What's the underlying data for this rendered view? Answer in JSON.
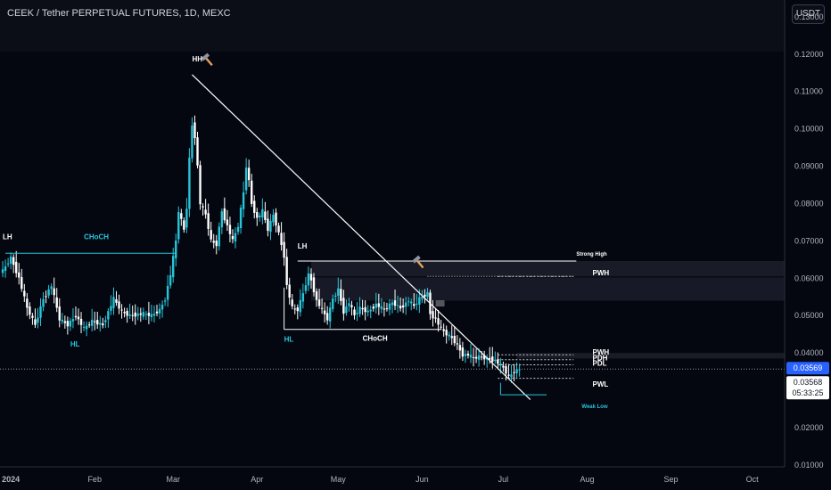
{
  "header": {
    "title": "CEEK / Tether PERPETUAL FUTURES, 1D, MEXC",
    "currency_button": "USDT"
  },
  "colors": {
    "background": "#050710",
    "candle_up": "#26c6da",
    "candle_down": "#ffffff",
    "structure": "#26c6da",
    "trendline": "#ffffff",
    "price_tag": "#2962ff"
  },
  "chart_data": {
    "type": "candlestick",
    "symbol": "CEEK / Tether PERPETUAL FUTURES",
    "timeframe": "1D",
    "exchange": "MEXC",
    "yaxis": {
      "ticks": [
        "0.13000",
        "0.12000",
        "0.11000",
        "0.10000",
        "0.09000",
        "0.08000",
        "0.07000",
        "0.06000",
        "0.05000",
        "0.04000",
        "0.03000",
        "0.02000",
        "0.01000"
      ],
      "tick_values": [
        0.13,
        0.12,
        0.11,
        0.1,
        0.09,
        0.08,
        0.07,
        0.06,
        0.05,
        0.04,
        0.03,
        0.02,
        0.01
      ],
      "range": [
        0.0095,
        0.1345
      ],
      "scale": "linear"
    },
    "xaxis": {
      "ticks": [
        "2024",
        "Feb",
        "Mar",
        "Apr",
        "May",
        "Jun",
        "Jul",
        "Aug",
        "Sep",
        "Oct"
      ],
      "tick_days": [
        6,
        37,
        66,
        97,
        127,
        158,
        188,
        219,
        250,
        280
      ],
      "range_days": [
        2,
        292
      ]
    },
    "close_anchors": [
      [
        3,
        0.062
      ],
      [
        6,
        0.0655
      ],
      [
        9,
        0.06
      ],
      [
        12,
        0.052
      ],
      [
        15,
        0.0475
      ],
      [
        18,
        0.0545
      ],
      [
        21,
        0.058
      ],
      [
        24,
        0.049
      ],
      [
        27,
        0.0475
      ],
      [
        30,
        0.05
      ],
      [
        33,
        0.0465
      ],
      [
        36,
        0.0485
      ],
      [
        40,
        0.0475
      ],
      [
        44,
        0.0545
      ],
      [
        47,
        0.051
      ],
      [
        50,
        0.05
      ],
      [
        55,
        0.0505
      ],
      [
        58,
        0.05
      ],
      [
        61,
        0.0515
      ],
      [
        63,
        0.0545
      ],
      [
        65,
        0.061
      ],
      [
        67,
        0.07
      ],
      [
        68,
        0.078
      ],
      [
        70,
        0.073
      ],
      [
        71,
        0.079
      ],
      [
        72,
        0.092
      ],
      [
        73,
        0.101
      ],
      [
        74,
        0.098
      ],
      [
        75,
        0.09
      ],
      [
        76,
        0.08
      ],
      [
        78,
        0.077
      ],
      [
        80,
        0.07
      ],
      [
        82,
        0.069
      ],
      [
        84,
        0.078
      ],
      [
        86,
        0.074
      ],
      [
        88,
        0.07
      ],
      [
        90,
        0.074
      ],
      [
        92,
        0.083
      ],
      [
        93,
        0.09
      ],
      [
        94,
        0.086
      ],
      [
        95,
        0.08
      ],
      [
        97,
        0.076
      ],
      [
        99,
        0.078
      ],
      [
        101,
        0.073
      ],
      [
        103,
        0.077
      ],
      [
        105,
        0.072
      ],
      [
        107,
        0.066
      ],
      [
        108,
        0.058
      ],
      [
        110,
        0.052
      ],
      [
        112,
        0.0515
      ],
      [
        114,
        0.056
      ],
      [
        116,
        0.061
      ],
      [
        117,
        0.0595
      ],
      [
        119,
        0.054
      ],
      [
        121,
        0.0515
      ],
      [
        123,
        0.049
      ],
      [
        125,
        0.0545
      ],
      [
        127,
        0.057
      ],
      [
        129,
        0.051
      ],
      [
        131,
        0.0535
      ],
      [
        133,
        0.05
      ],
      [
        135,
        0.052
      ],
      [
        138,
        0.051
      ],
      [
        141,
        0.053
      ],
      [
        144,
        0.0515
      ],
      [
        147,
        0.0535
      ],
      [
        150,
        0.052
      ],
      [
        153,
        0.054
      ],
      [
        155,
        0.0525
      ],
      [
        157,
        0.0545
      ],
      [
        159,
        0.0555
      ],
      [
        160,
        0.056
      ],
      [
        161,
        0.0505
      ],
      [
        163,
        0.049
      ],
      [
        165,
        0.0465
      ],
      [
        167,
        0.045
      ],
      [
        169,
        0.044
      ],
      [
        171,
        0.042
      ],
      [
        173,
        0.0395
      ],
      [
        175,
        0.0395
      ],
      [
        177,
        0.0385
      ],
      [
        179,
        0.039
      ],
      [
        182,
        0.0385
      ],
      [
        185,
        0.038
      ],
      [
        188,
        0.036
      ],
      [
        190,
        0.0335
      ],
      [
        192,
        0.035
      ],
      [
        194,
        0.0357
      ]
    ],
    "annotations": [
      {
        "text": "LH",
        "day": 3,
        "price": 0.0705,
        "color": "#ffffff"
      },
      {
        "text": "CHoCH",
        "day": 33,
        "price": 0.0705,
        "color": "#26c6da"
      },
      {
        "text": "HL",
        "day": 28,
        "price": 0.0417,
        "color": "#26c6da"
      },
      {
        "text": "HH",
        "day": 73,
        "price": 0.118,
        "color": "#ffffff"
      },
      {
        "text": "LH",
        "day": 112,
        "price": 0.068,
        "color": "#ffffff"
      },
      {
        "text": "HL",
        "day": 107,
        "price": 0.043,
        "color": "#26c6da"
      },
      {
        "text": "CHoCH",
        "day": 136,
        "price": 0.0432,
        "color": "#ffffff"
      },
      {
        "text": "Strong High",
        "day": 215,
        "price": 0.066,
        "color": "#ffffff"
      },
      {
        "text": "PWH",
        "day": 221,
        "price": 0.0608,
        "color": "#ffffff"
      },
      {
        "text": "PWH",
        "day": 221,
        "price": 0.0395,
        "color": "#ffffff"
      },
      {
        "text": "PDH",
        "day": 221,
        "price": 0.038,
        "color": "#ffffff"
      },
      {
        "text": "PDL",
        "day": 221,
        "price": 0.0366,
        "color": "#ffffff"
      },
      {
        "text": "PWL",
        "day": 221,
        "price": 0.031,
        "color": "#ffffff"
      },
      {
        "text": "Weak Low",
        "day": 217,
        "price": 0.0253,
        "color": "#26c6da"
      }
    ],
    "price_tags": [
      {
        "value": "0.03569",
        "type": "last"
      },
      {
        "value": "0.03568",
        "type": "close"
      },
      {
        "value": "05:33:25",
        "type": "countdown"
      }
    ]
  }
}
